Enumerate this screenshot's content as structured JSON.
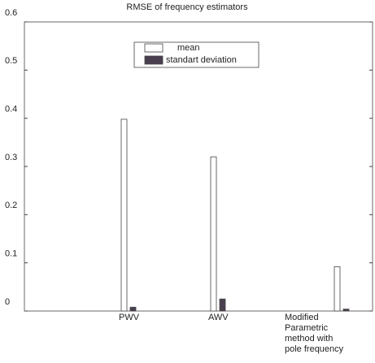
{
  "chart_data": {
    "type": "bar",
    "title": "RMSE of frequency estimators",
    "categories": [
      "PWV",
      "AWV",
      "Modified Parametric method with pole frequency"
    ],
    "series": [
      {
        "name": "mean",
        "color": "#ffffff",
        "values": [
          0.398,
          0.32,
          0.092
        ]
      },
      {
        "name": "standart deviation",
        "color": "#4a3f4f",
        "values": [
          0.008,
          0.025,
          0.004
        ]
      }
    ],
    "ylim": [
      0,
      0.6
    ],
    "yticks": [
      0,
      0.1,
      0.2,
      0.3,
      0.4,
      0.5,
      0.6
    ],
    "legend": "upper center"
  }
}
